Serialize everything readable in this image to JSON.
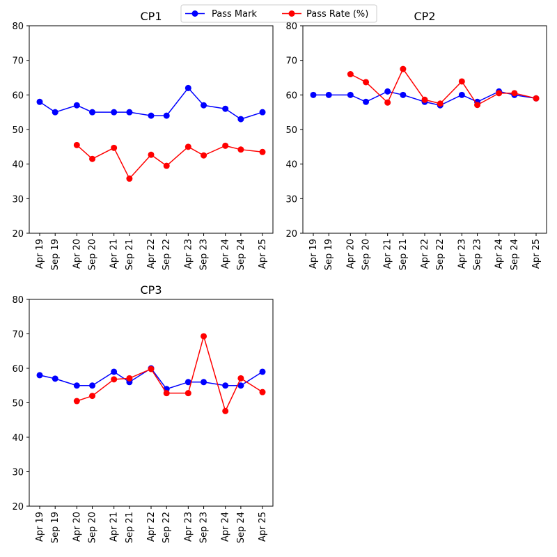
{
  "legend": {
    "placement": "top-center",
    "entries": [
      {
        "label": "Pass Mark",
        "color": "#0000ff"
      },
      {
        "label": "Pass Rate (%)",
        "color": "#ff0000"
      }
    ]
  },
  "chart_data": [
    {
      "type": "line",
      "title": "CP1",
      "xlabel": "",
      "ylabel": "",
      "ylim": [
        20,
        80
      ],
      "yticks": [
        20,
        30,
        40,
        50,
        60,
        70,
        80
      ],
      "grid": false,
      "categories": [
        "Apr 19",
        "Sep 19",
        "Apr 20",
        "Sep 20",
        "Apr 21",
        "Sep 21",
        "Apr 22",
        "Sep 22",
        "Apr 23",
        "Sep 23",
        "Apr 24",
        "Sep 24",
        "Apr 25"
      ],
      "x": [
        "2019-04",
        "2019-09",
        "2020-04",
        "2020-09",
        "2021-04",
        "2021-09",
        "2022-04",
        "2022-09",
        "2023-04",
        "2023-09",
        "2024-04",
        "2024-09",
        "2025-04"
      ],
      "series": [
        {
          "name": "Pass Mark",
          "color": "#0000ff",
          "values": [
            58,
            55,
            57,
            55,
            55,
            55,
            54,
            54,
            62,
            57,
            56,
            53,
            55
          ]
        },
        {
          "name": "Pass Rate (%)",
          "color": "#ff0000",
          "values": [
            null,
            null,
            45.5,
            41.5,
            44.7,
            35.8,
            42.7,
            39.5,
            45,
            42.5,
            45.3,
            44.2,
            43.5
          ]
        }
      ]
    },
    {
      "type": "line",
      "title": "CP2",
      "xlabel": "",
      "ylabel": "",
      "ylim": [
        20,
        80
      ],
      "yticks": [
        20,
        30,
        40,
        50,
        60,
        70,
        80
      ],
      "grid": false,
      "categories": [
        "Apr 19",
        "Sep 19",
        "Apr 20",
        "Sep 20",
        "Apr 21",
        "Sep 21",
        "Apr 22",
        "Sep 22",
        "Apr 23",
        "Sep 23",
        "Apr 24",
        "Sep 24",
        "Apr 25"
      ],
      "x": [
        "2019-04",
        "2019-09",
        "2020-04",
        "2020-09",
        "2021-04",
        "2021-09",
        "2022-04",
        "2022-09",
        "2023-04",
        "2023-09",
        "2024-04",
        "2024-09",
        "2025-04"
      ],
      "series": [
        {
          "name": "Pass Mark",
          "color": "#0000ff",
          "values": [
            60,
            60,
            60,
            58,
            61,
            60,
            58,
            57,
            60,
            58,
            61,
            60,
            59
          ]
        },
        {
          "name": "Pass Rate (%)",
          "color": "#ff0000",
          "values": [
            null,
            null,
            66,
            63.7,
            57.8,
            67.5,
            58.6,
            57.5,
            63.9,
            57.1,
            60.5,
            60.5,
            59
          ]
        }
      ]
    },
    {
      "type": "line",
      "title": "CP3",
      "xlabel": "",
      "ylabel": "",
      "ylim": [
        20,
        80
      ],
      "yticks": [
        20,
        30,
        40,
        50,
        60,
        70,
        80
      ],
      "grid": false,
      "categories": [
        "Apr 19",
        "Sep 19",
        "Apr 20",
        "Sep 20",
        "Apr 21",
        "Sep 21",
        "Apr 22",
        "Sep 22",
        "Apr 23",
        "Sep 23",
        "Apr 24",
        "Sep 24",
        "Apr 25"
      ],
      "x": [
        "2019-04",
        "2019-09",
        "2020-04",
        "2020-09",
        "2021-04",
        "2021-09",
        "2022-04",
        "2022-09",
        "2023-04",
        "2023-09",
        "2024-04",
        "2024-09",
        "2025-04"
      ],
      "series": [
        {
          "name": "Pass Mark",
          "color": "#0000ff",
          "values": [
            58,
            57,
            55,
            55,
            59,
            56,
            60,
            54,
            56,
            56,
            55,
            55,
            59
          ]
        },
        {
          "name": "Pass Rate (%)",
          "color": "#ff0000",
          "values": [
            null,
            null,
            50.5,
            52,
            56.8,
            57.1,
            59.8,
            52.8,
            52.8,
            69.3,
            47.6,
            57.1,
            53.1
          ]
        }
      ]
    }
  ]
}
